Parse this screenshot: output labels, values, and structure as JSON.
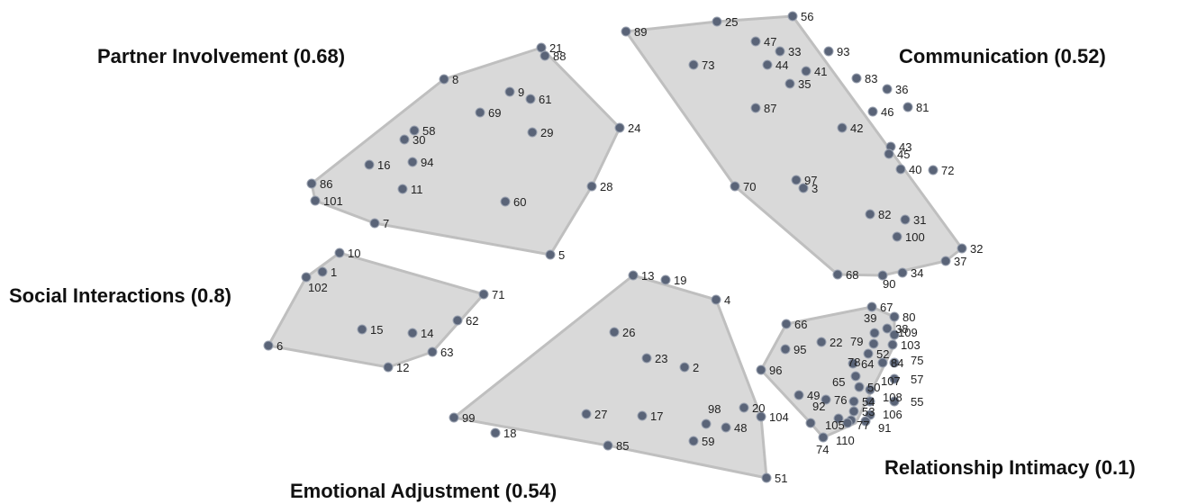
{
  "clusters": [
    {
      "id": "partner",
      "title": "Partner Involvement (0.68)",
      "points": [
        "21",
        "88",
        "8",
        "9",
        "61",
        "69",
        "58",
        "30",
        "29",
        "24",
        "16",
        "94",
        "86",
        "11",
        "28",
        "101",
        "60",
        "7",
        "5"
      ]
    },
    {
      "id": "communication",
      "title": "Communication (0.52)",
      "points": [
        "89",
        "25",
        "56",
        "47",
        "33",
        "93",
        "73",
        "44",
        "41",
        "83",
        "35",
        "36",
        "81",
        "87",
        "46",
        "42",
        "43",
        "45",
        "40",
        "72",
        "97",
        "3",
        "70",
        "82",
        "31",
        "100",
        "32",
        "37",
        "68",
        "90",
        "34"
      ]
    },
    {
      "id": "social",
      "title": "Social Interactions (0.8)",
      "points": [
        "10",
        "1",
        "102",
        "71",
        "62",
        "15",
        "14",
        "63",
        "6",
        "12"
      ]
    },
    {
      "id": "emotional",
      "title": "Emotional Adjustment (0.54)",
      "points": [
        "13",
        "19",
        "4",
        "26",
        "23",
        "2",
        "20",
        "98",
        "104",
        "27",
        "17",
        "48",
        "99",
        "18",
        "59",
        "85",
        "51"
      ]
    },
    {
      "id": "intimacy",
      "title": "Relationship Intimacy (0.1)",
      "points": [
        "67",
        "80",
        "39",
        "38",
        "109",
        "66",
        "22",
        "79",
        "103",
        "95",
        "52",
        "84",
        "75",
        "64",
        "96",
        "78",
        "65",
        "107",
        "57",
        "50",
        "49",
        "76",
        "54",
        "108",
        "55",
        "92",
        "53",
        "106",
        "105",
        "77",
        "91",
        "110",
        "74"
      ]
    }
  ]
}
